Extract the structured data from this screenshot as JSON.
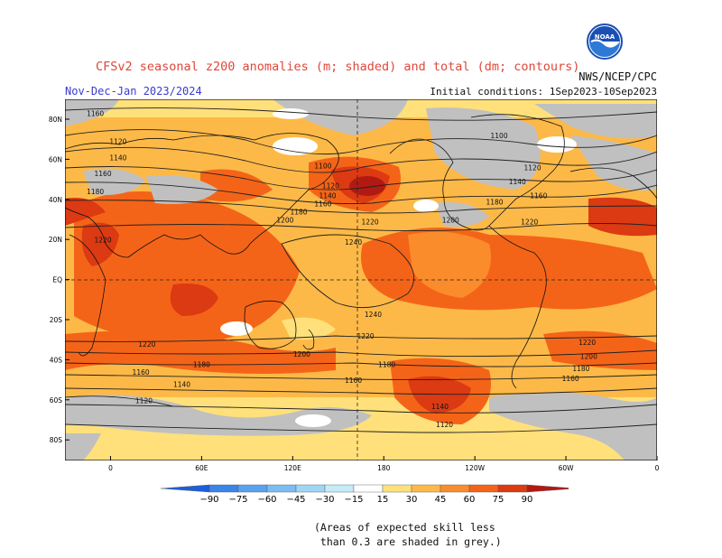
{
  "header": {
    "title": "CFSv2 seasonal z200 anomalies (m; shaded) and total (dm; contours)",
    "period": "Nov-Dec-Jan 2023/2024",
    "initial_conditions": "Initial conditions: 1Sep2023-10Sep2023",
    "agency": "NWS/NCEP/CPC",
    "logo_text": "NOAA"
  },
  "footnote": "(Areas of expected skill less\n than 0.3 are shaded in grey.)",
  "colors": {
    "skill_grey": "#c0c0c0",
    "pos15": "#ffe07a",
    "pos30": "#fdb947",
    "pos45": "#fb8c2b",
    "pos60": "#f46418",
    "pos75": "#dc3a12",
    "pos90": "#b11a12",
    "neg": "#9fd6f3"
  },
  "chart_data": {
    "type": "heatmap",
    "title": "CFSv2 seasonal z200 anomalies (m; shaded) and total (dm; contours)",
    "x_ticks": [
      "0",
      "60E",
      "120E",
      "180",
      "120W",
      "60W",
      "0"
    ],
    "y_ticks": [
      "80N",
      "60N",
      "40N",
      "20N",
      "EQ",
      "20S",
      "40S",
      "60S",
      "80S"
    ],
    "colorbar": {
      "ticks": [
        -90,
        -75,
        -60,
        -45,
        -30,
        -15,
        15,
        30,
        45,
        60,
        75,
        90
      ],
      "colors": [
        "#1e5fd8",
        "#3a84ea",
        "#5aa2f0",
        "#7cbcf4",
        "#9fd6f3",
        "#c3ecf8",
        "#ffffff",
        "#ffe07a",
        "#fdb947",
        "#fb8c2b",
        "#f46418",
        "#dc3a12",
        "#b11a12"
      ]
    },
    "contour_labels": [
      {
        "text": "1160",
        "lon": -10,
        "lat": 83
      },
      {
        "text": "1120",
        "lon": 5,
        "lat": 69
      },
      {
        "text": "1140",
        "lon": 5,
        "lat": 61
      },
      {
        "text": "1160",
        "lon": -5,
        "lat": 53
      },
      {
        "text": "1180",
        "lon": -10,
        "lat": 44
      },
      {
        "text": "1220",
        "lon": -5,
        "lat": 20
      },
      {
        "text": "1100",
        "lon": 140,
        "lat": 57
      },
      {
        "text": "1120",
        "lon": 145,
        "lat": 47
      },
      {
        "text": "1140",
        "lon": 143,
        "lat": 42
      },
      {
        "text": "1160",
        "lon": 140,
        "lat": 38
      },
      {
        "text": "1180",
        "lon": 124,
        "lat": 34
      },
      {
        "text": "1200",
        "lon": 115,
        "lat": 30
      },
      {
        "text": "1220",
        "lon": 171,
        "lat": 29
      },
      {
        "text": "1240",
        "lon": 160,
        "lat": 19
      },
      {
        "text": "1100",
        "lon": 256,
        "lat": 72
      },
      {
        "text": "1120",
        "lon": 278,
        "lat": 56
      },
      {
        "text": "1140",
        "lon": 268,
        "lat": 49
      },
      {
        "text": "1160",
        "lon": 282,
        "lat": 42
      },
      {
        "text": "1180",
        "lon": 253,
        "lat": 39
      },
      {
        "text": "1200",
        "lon": 224,
        "lat": 30
      },
      {
        "text": "1220",
        "lon": 276,
        "lat": 29
      },
      {
        "text": "1240",
        "lon": 173,
        "lat": -17
      },
      {
        "text": "1220",
        "lon": 168,
        "lat": -28
      },
      {
        "text": "1220",
        "lon": 24,
        "lat": -32
      },
      {
        "text": "1200",
        "lon": 126,
        "lat": -37
      },
      {
        "text": "1180",
        "lon": 60,
        "lat": -42
      },
      {
        "text": "1180",
        "lon": 182,
        "lat": -42
      },
      {
        "text": "1160",
        "lon": 20,
        "lat": -46
      },
      {
        "text": "1160",
        "lon": 160,
        "lat": -50
      },
      {
        "text": "1140",
        "lon": 47,
        "lat": -52
      },
      {
        "text": "1120",
        "lon": 22,
        "lat": -60
      },
      {
        "text": "1140",
        "lon": 217,
        "lat": -63
      },
      {
        "text": "1120",
        "lon": 220,
        "lat": -72
      },
      {
        "text": "1220",
        "lon": 314,
        "lat": -31
      },
      {
        "text": "1200",
        "lon": 315,
        "lat": -38
      },
      {
        "text": "1180",
        "lon": 310,
        "lat": -44
      },
      {
        "text": "1160",
        "lon": 303,
        "lat": -49
      }
    ]
  }
}
